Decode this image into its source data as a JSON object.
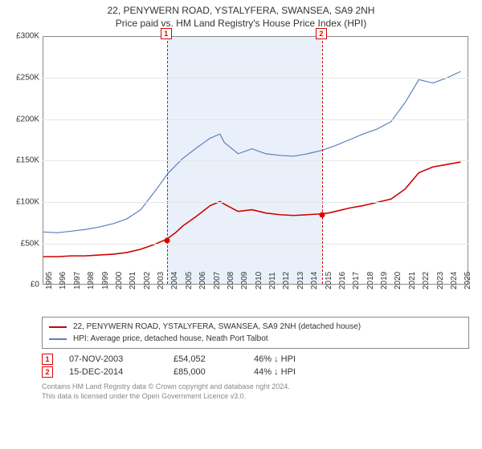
{
  "title": {
    "line1": "22, PENYWERN ROAD, YSTALYFERA, SWANSEA, SA9 2NH",
    "line2": "Price paid vs. HM Land Registry's House Price Index (HPI)"
  },
  "chart": {
    "type": "line",
    "xlim": [
      1995,
      2025.5
    ],
    "ylim": [
      0,
      300000
    ],
    "ytick_step": 50000,
    "y_ticks": [
      {
        "v": 0,
        "label": "£0"
      },
      {
        "v": 50000,
        "label": "£50K"
      },
      {
        "v": 100000,
        "label": "£100K"
      },
      {
        "v": 150000,
        "label": "£150K"
      },
      {
        "v": 200000,
        "label": "£200K"
      },
      {
        "v": 250000,
        "label": "£250K"
      },
      {
        "v": 300000,
        "label": "£300K"
      }
    ],
    "x_ticks": [
      1995,
      1996,
      1997,
      1998,
      1999,
      2000,
      2001,
      2002,
      2003,
      2004,
      2005,
      2006,
      2007,
      2008,
      2009,
      2010,
      2011,
      2012,
      2013,
      2014,
      2015,
      2016,
      2017,
      2018,
      2019,
      2020,
      2021,
      2022,
      2023,
      2024,
      2025
    ],
    "background_color": "#ffffff",
    "grid_color": "#e5e5e5",
    "axis_color": "#888888",
    "shade_color": "rgba(140,170,220,0.18)",
    "shade_from": 2003.85,
    "shade_to": 2014.96,
    "series": [
      {
        "name": "price_paid",
        "color": "#d00000",
        "width": 1.6,
        "data": [
          [
            1995,
            33000
          ],
          [
            1996,
            33000
          ],
          [
            1997,
            34000
          ],
          [
            1998,
            34000
          ],
          [
            1999,
            35000
          ],
          [
            2000,
            36000
          ],
          [
            2001,
            38000
          ],
          [
            2002,
            42000
          ],
          [
            2003,
            48000
          ],
          [
            2003.85,
            54052
          ],
          [
            2004.5,
            62000
          ],
          [
            2005,
            70000
          ],
          [
            2006,
            82000
          ],
          [
            2007,
            95000
          ],
          [
            2007.7,
            100000
          ],
          [
            2008,
            97000
          ],
          [
            2009,
            88000
          ],
          [
            2010,
            90000
          ],
          [
            2011,
            86000
          ],
          [
            2012,
            84000
          ],
          [
            2013,
            83000
          ],
          [
            2014,
            84000
          ],
          [
            2014.96,
            85000
          ],
          [
            2015.5,
            86000
          ],
          [
            2016,
            88000
          ],
          [
            2017,
            92000
          ],
          [
            2018,
            95000
          ],
          [
            2019,
            99000
          ],
          [
            2020,
            103000
          ],
          [
            2021,
            115000
          ],
          [
            2022,
            135000
          ],
          [
            2023,
            142000
          ],
          [
            2024,
            145000
          ],
          [
            2025,
            148000
          ]
        ]
      },
      {
        "name": "hpi",
        "color": "#5a7fc0",
        "width": 1.2,
        "data": [
          [
            1995,
            63000
          ],
          [
            1996,
            62000
          ],
          [
            1997,
            64000
          ],
          [
            1998,
            66000
          ],
          [
            1999,
            69000
          ],
          [
            2000,
            73000
          ],
          [
            2001,
            79000
          ],
          [
            2002,
            90000
          ],
          [
            2003,
            112000
          ],
          [
            2004,
            135000
          ],
          [
            2005,
            152000
          ],
          [
            2006,
            165000
          ],
          [
            2007,
            177000
          ],
          [
            2007.7,
            182000
          ],
          [
            2008,
            172000
          ],
          [
            2009,
            158000
          ],
          [
            2010,
            164000
          ],
          [
            2011,
            158000
          ],
          [
            2012,
            156000
          ],
          [
            2013,
            155000
          ],
          [
            2014,
            158000
          ],
          [
            2015,
            162000
          ],
          [
            2016,
            168000
          ],
          [
            2017,
            175000
          ],
          [
            2018,
            182000
          ],
          [
            2019,
            188000
          ],
          [
            2020,
            197000
          ],
          [
            2021,
            220000
          ],
          [
            2022,
            248000
          ],
          [
            2023,
            244000
          ],
          [
            2024,
            250000
          ],
          [
            2025,
            258000
          ]
        ]
      }
    ],
    "markers": [
      {
        "num": "1",
        "x": 2003.85,
        "y": 54052
      },
      {
        "num": "2",
        "x": 2014.96,
        "y": 85000
      }
    ]
  },
  "legend": {
    "items": [
      {
        "color": "#d00000",
        "label": "22, PENYWERN ROAD, YSTALYFERA, SWANSEA, SA9 2NH (detached house)"
      },
      {
        "color": "#5a7fc0",
        "label": "HPI: Average price, detached house, Neath Port Talbot"
      }
    ]
  },
  "sales": [
    {
      "num": "1",
      "date": "07-NOV-2003",
      "price": "£54,052",
      "pct": "46% ↓ HPI"
    },
    {
      "num": "2",
      "date": "15-DEC-2014",
      "price": "£85,000",
      "pct": "44% ↓ HPI"
    }
  ],
  "footer": {
    "line1": "Contains HM Land Registry data © Crown copyright and database right 2024.",
    "line2": "This data is licensed under the Open Government Licence v3.0."
  }
}
